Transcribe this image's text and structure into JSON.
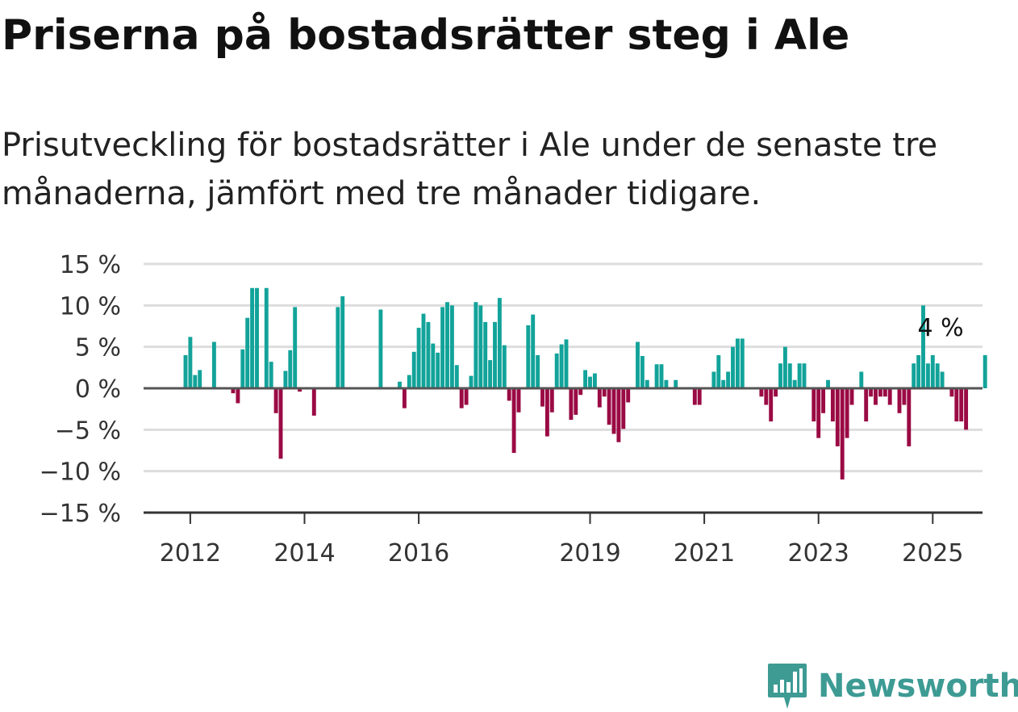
{
  "header": {
    "title": "Priserna på bostadsrätter steg i Ale",
    "subtitle": "Prisutveckling för bostadsrätter i Ale under de senaste tre månaderna, jämfört med tre månader tidigare."
  },
  "logo": {
    "text": "Newsworthy",
    "icon": "newsworthy-chart-icon",
    "color": "#3d9b94"
  },
  "colors": {
    "positive": "#12a39a",
    "negative": "#9a0a44",
    "grid": "#dddddd",
    "baseline": "#555555"
  },
  "chart_data": {
    "type": "bar",
    "x_start": "2011-12",
    "x_unit": "month",
    "ylim": [
      -15,
      15
    ],
    "yticks": [
      15,
      10,
      5,
      0,
      -5,
      -10,
      -15
    ],
    "ytick_labels": [
      "15 %",
      "10 %",
      "5 %",
      "0 %",
      "−5 %",
      "−10 %",
      "−15 %"
    ],
    "xtick_labels": [
      "2012",
      "2014",
      "2016",
      "2019",
      "2021",
      "2023",
      "2025"
    ],
    "xtick_dates": [
      "2012-01",
      "2014-01",
      "2016-01",
      "2019-01",
      "2021-01",
      "2023-01",
      "2025-01"
    ],
    "annotation": {
      "label": "4 %",
      "date": "2025-03",
      "value": 4
    },
    "grid": true,
    "values": [
      4,
      6.2,
      1.6,
      2.2,
      0,
      0,
      5.6,
      0,
      0,
      0,
      -0.6,
      -1.8,
      4.7,
      8.5,
      12.1,
      12.1,
      0,
      12.1,
      3.2,
      -3,
      -8.5,
      2.1,
      4.6,
      9.8,
      -0.4,
      0,
      0,
      -3.3,
      0,
      0,
      0,
      0,
      9.8,
      11.1,
      0,
      0,
      0,
      0,
      0,
      0,
      0,
      9.5,
      0,
      0,
      0,
      0.8,
      -2.4,
      1.6,
      4.4,
      7.3,
      9,
      8,
      5.4,
      4.3,
      9.8,
      10.4,
      10,
      2.8,
      -2.4,
      -2,
      1.5,
      10.4,
      10,
      8,
      3.4,
      8,
      10.9,
      5.2,
      -1.5,
      -7.8,
      -2.9,
      0,
      7.6,
      8.9,
      4,
      -2.2,
      -5.8,
      -2.9,
      4.2,
      5.3,
      5.9,
      -3.8,
      -3.2,
      -0.8,
      2.2,
      1.4,
      1.8,
      -2.3,
      -1,
      -4.4,
      -5.5,
      -6.5,
      -4.9,
      -1.7,
      0,
      5.6,
      3.9,
      1,
      0,
      2.9,
      2.9,
      1,
      0,
      1,
      0,
      0,
      0,
      -2,
      -2,
      0,
      0,
      2,
      4,
      1,
      2,
      5,
      6,
      6,
      0,
      0,
      0,
      -1,
      -2,
      -4,
      -1,
      3,
      5,
      3,
      1,
      3,
      3,
      0,
      -4,
      -6,
      -3,
      1,
      -4,
      -7,
      -11,
      -6,
      -2,
      0,
      2,
      -4,
      -1,
      -2,
      -1,
      -1,
      -2,
      0,
      -3,
      -2,
      -7,
      3,
      4,
      10,
      3,
      4,
      3,
      2,
      0,
      -1,
      -4,
      -4,
      -5,
      0,
      0,
      0,
      4
    ]
  }
}
